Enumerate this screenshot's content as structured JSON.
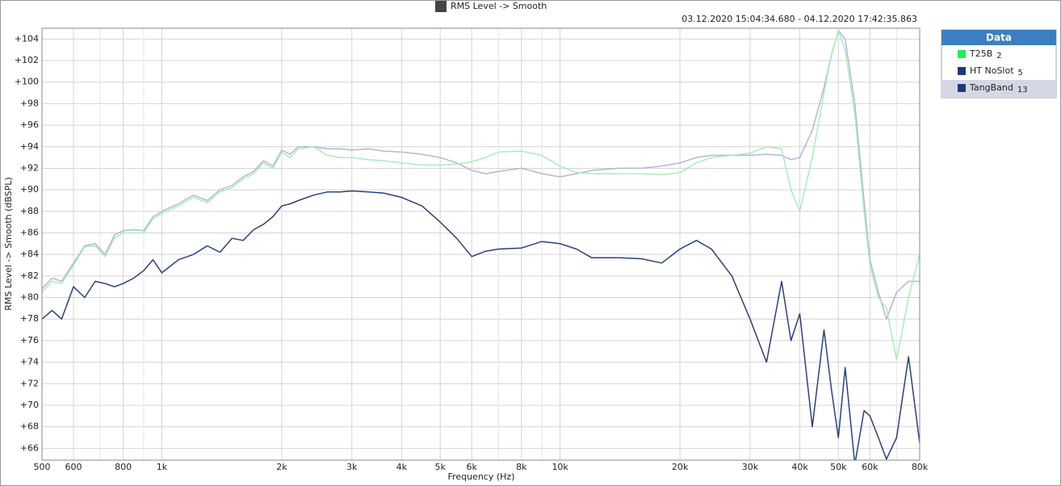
{
  "chart_data": {
    "type": "line",
    "title": "RMS Level -> Smooth",
    "subtitle": "03.12.2020 15:04:34.680 - 04.12.2020 17:42:35.863",
    "x_label": "Frequency (Hz)",
    "y_label": "RMS Level -> Smooth (dBSPL)",
    "legend_title": "Data",
    "log_x": true,
    "grid": true,
    "x": [
      500,
      530,
      560,
      600,
      640,
      680,
      720,
      760,
      800,
      850,
      900,
      950,
      1000,
      1100,
      1200,
      1300,
      1400,
      1500,
      1600,
      1700,
      1800,
      1900,
      2000,
      2100,
      2200,
      2400,
      2600,
      2800,
      3000,
      3300,
      3600,
      4000,
      4500,
      5000,
      5500,
      6000,
      6500,
      7000,
      8000,
      9000,
      10000,
      11000,
      12000,
      14000,
      16000,
      18000,
      20000,
      22000,
      24000,
      27000,
      30000,
      33000,
      36000,
      38000,
      40000,
      43000,
      46000,
      48000,
      50000,
      52000,
      55000,
      58000,
      60000,
      63000,
      66000,
      70000,
      75000,
      80000
    ],
    "series": [
      {
        "name": "T25B",
        "number": 2,
        "color": "#22ee55",
        "line_color": "#a6eeb8",
        "values": [
          80.5,
          81.5,
          81.3,
          83,
          84.7,
          84.8,
          83.8,
          85.5,
          86,
          86,
          86,
          87.3,
          87.8,
          88.5,
          89.3,
          88.8,
          89.8,
          90.2,
          91,
          91.5,
          92.5,
          92,
          93.5,
          93,
          93.8,
          94,
          93.2,
          93,
          93,
          92.8,
          92.7,
          92.5,
          92.3,
          92.3,
          92.4,
          92.6,
          93,
          93.5,
          93.6,
          93.2,
          92.2,
          91.6,
          91.5,
          91.5,
          91.5,
          91.4,
          91.6,
          92.5,
          93,
          93.2,
          93.4,
          94,
          93.8,
          90,
          88,
          93,
          99,
          102.5,
          104.8,
          103,
          97,
          88,
          83,
          80,
          79,
          74.2,
          80,
          84
        ]
      },
      {
        "name": "HT NoSlot",
        "number": 5,
        "color": "#1f3a78",
        "line_color": "#2a4080",
        "values": [
          78,
          78.8,
          78,
          81,
          80,
          81.5,
          81.3,
          81,
          81.3,
          81.8,
          82.5,
          83.5,
          82.3,
          83.5,
          84,
          84.8,
          84.2,
          85.5,
          85.3,
          86.3,
          86.8,
          87.5,
          88.5,
          88.7,
          89,
          89.5,
          89.8,
          89.8,
          89.9,
          89.8,
          89.7,
          89.3,
          88.5,
          87,
          85.5,
          83.8,
          84.3,
          84.5,
          84.6,
          85.2,
          85,
          84.5,
          83.7,
          83.7,
          83.6,
          83.2,
          84.5,
          85.3,
          84.5,
          82,
          78,
          74,
          81.5,
          76,
          78.5,
          68,
          77,
          71.5,
          67,
          73.5,
          64.5,
          69.5,
          69,
          67,
          65,
          67,
          74.5,
          66.5
        ]
      },
      {
        "name": "TangBand",
        "number": 13,
        "color": "#1f3a78",
        "line_color": "#b4b6d6",
        "values": [
          80.8,
          81.8,
          81.5,
          83.2,
          84.8,
          85,
          84,
          85.8,
          86.2,
          86.3,
          86.2,
          87.5,
          88,
          88.7,
          89.5,
          89,
          90,
          90.4,
          91.2,
          91.7,
          92.7,
          92.2,
          93.7,
          93.3,
          94,
          94,
          93.8,
          93.8,
          93.7,
          93.8,
          93.6,
          93.5,
          93.3,
          93,
          92.5,
          91.8,
          91.5,
          91.7,
          92,
          91.5,
          91.2,
          91.5,
          91.8,
          92,
          92,
          92.2,
          92.5,
          93,
          93.2,
          93.2,
          93.2,
          93.3,
          93.2,
          92.8,
          93,
          95.5,
          99.5,
          102.5,
          104.8,
          104,
          98,
          89,
          83.5,
          80.5,
          78,
          80.5,
          81.5,
          81.5
        ]
      }
    ],
    "xlim": [
      500,
      80000
    ],
    "ylim": [
      64.9,
      105
    ],
    "xticks": [
      500,
      600,
      800,
      {
        "value": 1000,
        "label": "1k"
      },
      {
        "value": 2000,
        "label": "2k"
      },
      {
        "value": 3000,
        "label": "3k"
      },
      {
        "value": 4000,
        "label": "4k"
      },
      {
        "value": 5000,
        "label": "5k"
      },
      {
        "value": 6000,
        "label": "6k"
      },
      {
        "value": 8000,
        "label": "8k"
      },
      {
        "value": 10000,
        "label": "10k"
      },
      {
        "value": 20000,
        "label": "20k"
      },
      {
        "value": 30000,
        "label": "30k"
      },
      {
        "value": 40000,
        "label": "40k"
      },
      {
        "value": 50000,
        "label": "50k"
      },
      {
        "value": 60000,
        "label": "60k"
      },
      {
        "value": 80000,
        "label": "80k"
      }
    ],
    "x_minor_ticks": [
      700,
      900,
      7000,
      9000,
      70000
    ],
    "yticks": [
      {
        "value": 66,
        "label": "+66"
      },
      {
        "value": 68,
        "label": "+68"
      },
      {
        "value": 70,
        "label": "+70"
      },
      {
        "value": 72,
        "label": "+72"
      },
      {
        "value": 74,
        "label": "+74"
      },
      {
        "value": 76,
        "label": "+76"
      },
      {
        "value": 78,
        "label": "+78"
      },
      {
        "value": 80,
        "label": "+80"
      },
      {
        "value": 82,
        "label": "+82"
      },
      {
        "value": 84,
        "label": "+84"
      },
      {
        "value": 86,
        "label": "+86"
      },
      {
        "value": 88,
        "label": "+88"
      },
      {
        "value": 90,
        "label": "+90"
      },
      {
        "value": 92,
        "label": "+92"
      },
      {
        "value": 94,
        "label": "+94"
      },
      {
        "value": 96,
        "label": "+96"
      },
      {
        "value": 98,
        "label": "+98"
      },
      {
        "value": 100,
        "label": "+100"
      },
      {
        "value": 102,
        "label": "+102"
      },
      {
        "value": 104,
        "label": "+104"
      }
    ]
  }
}
